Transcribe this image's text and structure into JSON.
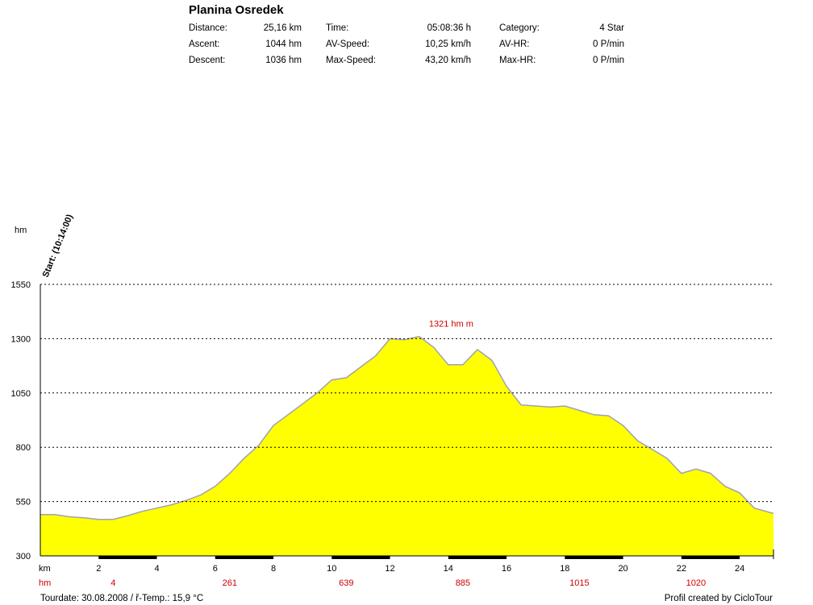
{
  "header": {
    "title": "Planina Osredek",
    "rows": [
      {
        "c1": "Distance:",
        "v1": "25,16 km",
        "c2": "Time:",
        "v2": "05:08:36 h",
        "c3": "Category:",
        "v3": "4 Star"
      },
      {
        "c1": "Ascent:",
        "v1": "1044 hm",
        "c2": "AV-Speed:",
        "v2": "10,25 km/h",
        "c3": "AV-HR:",
        "v3": "0 P/min"
      },
      {
        "c1": "Descent:",
        "v1": "1036 hm",
        "c2": "Max-Speed:",
        "v2": "43,20 km/h",
        "c3": "Max-HR:",
        "v3": "0 P/min"
      }
    ]
  },
  "footer": {
    "left": "Tourdate: 30.08.2008  /  ř-Temp.: 15,9 °C",
    "right": "Profil created by CicloTour"
  },
  "colors": {
    "fill": "#ffff00",
    "outline": "#a0a0b8",
    "grid": "#000000",
    "red_text": "#cc0000"
  },
  "chart_data": {
    "type": "area",
    "ylabel": "hm",
    "ylim": [
      300,
      1550
    ],
    "yticks": [
      300,
      550,
      800,
      1050,
      1300,
      1550
    ],
    "xlim": [
      0,
      25.16
    ],
    "xlabel": "km",
    "xticks": [
      2,
      4,
      6,
      8,
      10,
      12,
      14,
      16,
      18,
      20,
      22,
      24
    ],
    "hm_row_label": "hm",
    "hm_row": [
      {
        "km": 2.5,
        "text": "4"
      },
      {
        "km": 6.5,
        "text": "261"
      },
      {
        "km": 10.5,
        "text": "639"
      },
      {
        "km": 14.5,
        "text": "885"
      },
      {
        "km": 18.5,
        "text": "1015"
      },
      {
        "km": 22.5,
        "text": "1020"
      }
    ],
    "start_label": "Start: (10:14:00)",
    "peak_label": "1321 hm m",
    "peak_label_km": 14.1,
    "peak_label_alt": 1355,
    "x": [
      0,
      0.5,
      1,
      1.5,
      2,
      2.5,
      3,
      3.5,
      4,
      4.5,
      5,
      5.5,
      6,
      6.5,
      7,
      7.5,
      8,
      8.5,
      9,
      9.5,
      10,
      10.5,
      11,
      11.5,
      12,
      12.5,
      13,
      13.5,
      14,
      14.5,
      15,
      15.5,
      16,
      16.5,
      17,
      17.5,
      18,
      18.5,
      19,
      19.5,
      20,
      20.5,
      21,
      21.5,
      22,
      22.5,
      23,
      23.5,
      24,
      24.5,
      25.16
    ],
    "y": [
      490,
      490,
      480,
      475,
      468,
      468,
      485,
      505,
      520,
      535,
      555,
      580,
      620,
      680,
      750,
      810,
      900,
      950,
      1000,
      1050,
      1110,
      1120,
      1170,
      1220,
      1300,
      1295,
      1310,
      1260,
      1180,
      1180,
      1250,
      1200,
      1080,
      995,
      990,
      985,
      990,
      970,
      950,
      945,
      900,
      830,
      790,
      750,
      680,
      700,
      680,
      620,
      590,
      520,
      495
    ]
  }
}
